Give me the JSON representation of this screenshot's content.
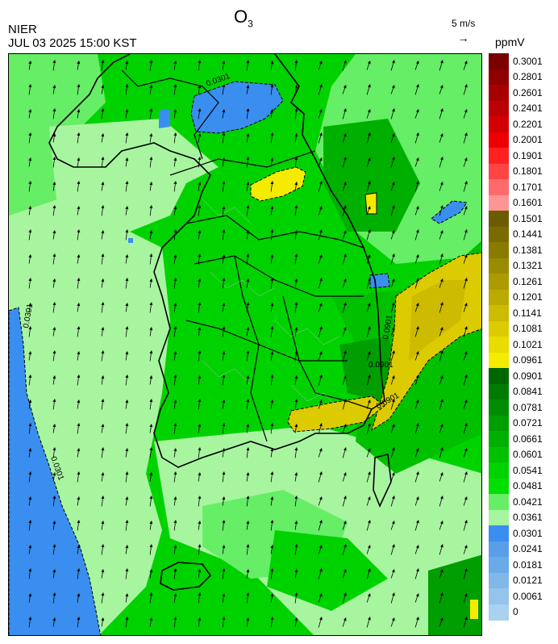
{
  "header": {
    "title_main": "O",
    "title_sub": "3",
    "agency": "NIER",
    "timestamp": "JUL 03 2025 15:00 KST",
    "wind_ref_label": "5 m/s",
    "wind_ref_arrow": "→"
  },
  "legend": {
    "unit": "ppmV",
    "labels": [
      "0.3001",
      "0.2801",
      "0.2601",
      "0.2401",
      "0.2201",
      "0.2001",
      "0.1901",
      "0.1801",
      "0.1701",
      "0.1601",
      "0.1501",
      "0.1441",
      "0.1381",
      "0.1321",
      "0.1261",
      "0.1201",
      "0.1141",
      "0.1081",
      "0.1021",
      "0.0961",
      "0.0901",
      "0.0841",
      "0.0781",
      "0.0721",
      "0.0661",
      "0.0601",
      "0.0541",
      "0.0481",
      "0.0421",
      "0.0361",
      "0.0301",
      "0.0241",
      "0.0181",
      "0.0121",
      "0.0061",
      "0"
    ],
    "colors": [
      "#7a0000",
      "#8f0000",
      "#a60000",
      "#bc0000",
      "#d40000",
      "#ee0000",
      "#ff2020",
      "#ff4444",
      "#ff6a6a",
      "#ff9494",
      "#6b5c00",
      "#7a6b00",
      "#8a7a00",
      "#9a8a00",
      "#ab9a00",
      "#bbaa00",
      "#ccbb00",
      "#dccb00",
      "#eadb00",
      "#f5eb00",
      "#006600",
      "#007a00",
      "#008c00",
      "#009e00",
      "#00b000",
      "#00c000",
      "#00d200",
      "#00e000",
      "#66ee66",
      "#a8f5a0",
      "#3a8ef0",
      "#5a9ee8",
      "#6aaae8",
      "#80b8e8",
      "#94c4ea",
      "#a8d2ee"
    ]
  },
  "map": {
    "contour_labels": [
      "0.0901",
      "0.0901",
      "0.0901",
      "0.0901",
      "0.0301",
      "0.0301",
      "0.0301"
    ]
  }
}
